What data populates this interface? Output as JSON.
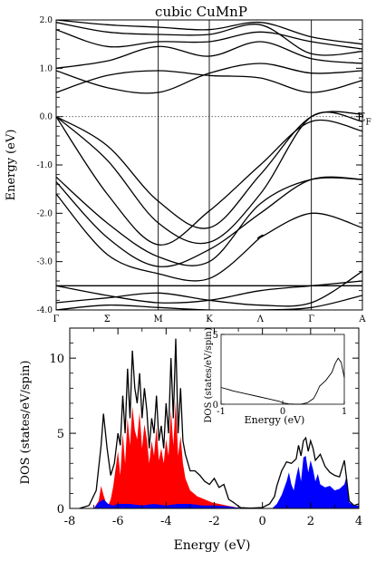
{
  "chart_data": [
    {
      "type": "line",
      "title": "cubic CuMnP",
      "ylabel": "Energy (eV)",
      "ylim": [
        -4.0,
        2.0
      ],
      "yticks": [
        -4.0,
        -3.0,
        -2.0,
        -1.0,
        0.0,
        1.0,
        2.0
      ],
      "ytick_labels": [
        "-4.0",
        "-3.0",
        "-2.0",
        "-1.0",
        "0.0",
        "1.0",
        "2.0"
      ],
      "kpoints": [
        "Γ",
        "Σ",
        "M",
        "K",
        "Λ",
        "Γ",
        "A"
      ],
      "kpoint_pos": [
        0,
        0.5,
        1,
        1.5,
        2,
        2.5,
        3
      ],
      "symmetry_lines_at": [
        1,
        1.5,
        2.5
      ],
      "fermi_label": "E",
      "fermi_sub": "F",
      "fermi_level": 0.0,
      "bands": [
        [
          [
            0,
            0.0
          ],
          [
            0.5,
            -0.6
          ],
          [
            1,
            -1.75
          ],
          [
            1.5,
            -2.3
          ],
          [
            2,
            -1.2
          ],
          [
            2.5,
            0.0
          ],
          [
            3,
            0.05
          ]
        ],
        [
          [
            0,
            0.0
          ],
          [
            0.5,
            -0.9
          ],
          [
            1,
            -2.2
          ],
          [
            1.5,
            -2.6
          ],
          [
            2,
            -1.6
          ],
          [
            2.5,
            0.0
          ],
          [
            3,
            -0.1
          ]
        ],
        [
          [
            0,
            0.0
          ],
          [
            0.5,
            -1.6
          ],
          [
            1,
            -2.65
          ],
          [
            1.5,
            -1.95
          ],
          [
            2,
            -1.0
          ],
          [
            2.5,
            -0.1
          ],
          [
            3,
            -0.3
          ]
        ],
        [
          [
            0,
            -1.25
          ],
          [
            0.5,
            -2.2
          ],
          [
            1,
            -2.9
          ],
          [
            1.5,
            -3.0
          ],
          [
            2,
            -1.8
          ],
          [
            2.5,
            -1.3
          ],
          [
            3,
            -1.3
          ]
        ],
        [
          [
            0,
            -1.35
          ],
          [
            0.5,
            -2.5
          ],
          [
            1,
            -3.1
          ],
          [
            1.5,
            -2.75
          ],
          [
            2,
            -2.0
          ],
          [
            2.5,
            -1.3
          ],
          [
            3,
            -1.3
          ]
        ],
        [
          [
            0,
            -1.6
          ],
          [
            0.5,
            -2.85
          ],
          [
            1,
            -3.25
          ],
          [
            1.5,
            -3.35
          ],
          [
            2,
            -2.5
          ],
          [
            2,
            -2.5
          ],
          [
            2.5,
            -2.0
          ],
          [
            3,
            -2.3
          ]
        ],
        [
          [
            0,
            -3.5
          ],
          [
            0.5,
            -3.5
          ],
          [
            1,
            -3.5
          ],
          [
            1.5,
            -3.5
          ],
          [
            2,
            -3.5
          ],
          [
            2.5,
            -3.5
          ],
          [
            3,
            -3.5
          ]
        ],
        [
          [
            0,
            -3.5
          ],
          [
            0.5,
            -3.7
          ],
          [
            1,
            -3.85
          ],
          [
            1.5,
            -3.8
          ],
          [
            2,
            -3.6
          ],
          [
            2.5,
            -3.5
          ],
          [
            3,
            -3.4
          ]
        ],
        [
          [
            0,
            -3.85
          ],
          [
            0.5,
            -3.75
          ],
          [
            1,
            -3.65
          ],
          [
            1.5,
            -3.8
          ],
          [
            2,
            -3.9
          ],
          [
            2.5,
            -3.85
          ],
          [
            3,
            -3.2
          ]
        ],
        [
          [
            0,
            -4.0
          ],
          [
            0.5,
            -3.9
          ],
          [
            1,
            -3.95
          ],
          [
            1.5,
            -4.0
          ],
          [
            2,
            -4.0
          ],
          [
            2.5,
            -3.95
          ],
          [
            3,
            -3.7
          ]
        ],
        [
          [
            0,
            0.5
          ],
          [
            0.5,
            0.85
          ],
          [
            1,
            0.95
          ],
          [
            1.5,
            0.85
          ],
          [
            2,
            0.8
          ],
          [
            2.5,
            0.5
          ],
          [
            3,
            0.75
          ]
        ],
        [
          [
            0,
            0.95
          ],
          [
            0.5,
            0.6
          ],
          [
            1,
            0.5
          ],
          [
            1.5,
            0.9
          ],
          [
            2,
            1.1
          ],
          [
            2.5,
            0.9
          ],
          [
            3,
            0.95
          ]
        ],
        [
          [
            0,
            1.0
          ],
          [
            0.5,
            1.15
          ],
          [
            1,
            1.45
          ],
          [
            1.5,
            1.25
          ],
          [
            2,
            1.55
          ],
          [
            2.5,
            1.2
          ],
          [
            3,
            1.1
          ]
        ],
        [
          [
            0,
            1.8
          ],
          [
            0.5,
            1.45
          ],
          [
            1,
            1.55
          ],
          [
            1.5,
            1.55
          ],
          [
            2,
            1.75
          ],
          [
            2.5,
            1.55
          ],
          [
            3,
            1.4
          ]
        ],
        [
          [
            0,
            1.95
          ],
          [
            0.5,
            1.75
          ],
          [
            1,
            1.7
          ],
          [
            1.5,
            1.7
          ],
          [
            2,
            1.9
          ],
          [
            2.5,
            1.3
          ],
          [
            3,
            1.35
          ]
        ],
        [
          [
            0,
            2.0
          ],
          [
            0.5,
            1.9
          ],
          [
            1,
            1.85
          ],
          [
            1.5,
            1.8
          ],
          [
            2,
            1.95
          ],
          [
            2.5,
            1.65
          ],
          [
            3,
            1.5
          ]
        ]
      ]
    },
    {
      "type": "area",
      "ylabel": "DOS (states/eV/spin)",
      "xlabel": "Energy (eV)",
      "xlim": [
        -8,
        4
      ],
      "ylim": [
        0,
        12
      ],
      "xticks": [
        -8,
        -6,
        -4,
        -2,
        0,
        2,
        4
      ],
      "xtick_labels": [
        "-8",
        "-6",
        "-4",
        "-2",
        "0",
        "2",
        "4"
      ],
      "yticks": [
        0,
        5,
        10
      ],
      "ytick_labels": [
        "0",
        "5",
        "10"
      ],
      "series": [
        {
          "color": "#000000",
          "x": [
            -7.6,
            -7.2,
            -6.9,
            -6.7,
            -6.6,
            -6.45,
            -6.3,
            -6.15,
            -6.0,
            -5.9,
            -5.8,
            -5.7,
            -5.6,
            -5.5,
            -5.4,
            -5.3,
            -5.2,
            -5.1,
            -5.0,
            -4.9,
            -4.8,
            -4.7,
            -4.6,
            -4.5,
            -4.4,
            -4.3,
            -4.2,
            -4.1,
            -4.0,
            -3.9,
            -3.8,
            -3.7,
            -3.6,
            -3.5,
            -3.4,
            -3.3,
            -3.2,
            -3.0,
            -2.8,
            -2.6,
            -2.4,
            -2.2,
            -2.0,
            -1.8,
            -1.6,
            -1.4,
            -1.2,
            -1.0,
            -0.9,
            -0.5,
            -0.2,
            0.0,
            0.3,
            0.5,
            0.6,
            0.8,
            1.0,
            1.2,
            1.4,
            1.5,
            1.6,
            1.7,
            1.8,
            1.9,
            2.0,
            2.1,
            2.2,
            2.4,
            2.6,
            2.8,
            3.0,
            3.2,
            3.4,
            3.6,
            3.8,
            4.0
          ],
          "y": [
            0.0,
            0.2,
            1.2,
            4.2,
            6.3,
            4.0,
            2.2,
            3.0,
            5.0,
            4.2,
            7.5,
            5.0,
            9.3,
            6.0,
            10.5,
            8.0,
            7.0,
            9.0,
            6.0,
            8.0,
            6.5,
            4.0,
            6.0,
            5.0,
            7.5,
            4.5,
            5.5,
            4.0,
            7.0,
            5.0,
            10.0,
            6.0,
            11.3,
            5.0,
            8.0,
            4.5,
            3.6,
            2.5,
            2.5,
            2.2,
            1.8,
            1.6,
            2.0,
            1.4,
            1.6,
            0.6,
            0.4,
            0.15,
            0.05,
            0.02,
            0.04,
            0.06,
            0.3,
            0.8,
            1.5,
            2.5,
            3.1,
            3.0,
            3.3,
            4.2,
            3.5,
            4.5,
            4.7,
            3.8,
            4.5,
            4.0,
            3.2,
            3.6,
            2.8,
            2.4,
            2.2,
            2.1,
            3.2,
            0.5,
            0.2,
            0.3
          ]
        },
        {
          "color": "#ff0000",
          "x": [
            -7.0,
            -6.8,
            -6.7,
            -6.6,
            -6.5,
            -6.4,
            -6.3,
            -6.2,
            -6.1,
            -6.0,
            -5.9,
            -5.8,
            -5.7,
            -5.6,
            -5.5,
            -5.4,
            -5.3,
            -5.2,
            -5.1,
            -5.0,
            -4.9,
            -4.8,
            -4.7,
            -4.6,
            -4.5,
            -4.4,
            -4.3,
            -4.2,
            -4.1,
            -4.0,
            -3.9,
            -3.8,
            -3.7,
            -3.6,
            -3.5,
            -3.4,
            -3.3,
            -3.2,
            -3.0,
            -2.7,
            -2.4,
            -2.1,
            -1.8,
            -1.5,
            -1.2,
            -0.9
          ],
          "y": [
            0.0,
            0.5,
            1.5,
            0.9,
            0.4,
            0.2,
            0.6,
            1.4,
            2.6,
            3.8,
            2.2,
            5.0,
            3.0,
            6.0,
            4.2,
            6.8,
            5.2,
            4.6,
            6.4,
            4.0,
            5.6,
            4.6,
            3.0,
            4.5,
            3.5,
            5.4,
            3.2,
            4.0,
            3.0,
            4.6,
            3.5,
            6.5,
            4.2,
            7.2,
            3.5,
            4.8,
            3.0,
            2.0,
            1.2,
            0.8,
            0.6,
            0.4,
            0.3,
            0.2,
            0.1,
            0.0
          ]
        },
        {
          "color": "#0000ff",
          "x": [
            -7.0,
            -6.8,
            -6.6,
            -6.4,
            -6.2,
            -6.0,
            -5.5,
            -5.0,
            -4.5,
            -4.0,
            -3.5,
            -3.0,
            -2.5,
            -2.0,
            -1.5,
            -1.0,
            0.4,
            0.6,
            0.8,
            1.0,
            1.1,
            1.2,
            1.3,
            1.4,
            1.5,
            1.6,
            1.7,
            1.8,
            1.9,
            2.0,
            2.1,
            2.2,
            2.3,
            2.4,
            2.6,
            2.8,
            3.0,
            3.2,
            3.4,
            3.5,
            3.6,
            3.8,
            4.0
          ],
          "y": [
            0.0,
            0.4,
            0.6,
            0.3,
            0.2,
            0.3,
            0.3,
            0.2,
            0.3,
            0.2,
            0.3,
            0.3,
            0.2,
            0.2,
            0.15,
            0.05,
            0.0,
            0.3,
            0.9,
            1.8,
            2.4,
            1.6,
            1.2,
            2.1,
            2.8,
            1.8,
            3.4,
            3.5,
            2.4,
            3.2,
            2.6,
            1.8,
            2.3,
            1.6,
            1.4,
            1.5,
            1.2,
            1.3,
            1.6,
            2.2,
            0.4,
            0.2,
            0.2
          ]
        }
      ]
    },
    {
      "type": "line",
      "ylabel": "DOS (states/eV/spin)",
      "xlabel": "Energy (eV)",
      "xlim": [
        -1,
        1
      ],
      "ylim": [
        0,
        5
      ],
      "xticks": [
        -1,
        0,
        1
      ],
      "xtick_labels": [
        "-1",
        "0",
        "1"
      ],
      "yticks": [
        0,
        5
      ],
      "ytick_labels": [
        "0",
        "5"
      ],
      "series": [
        {
          "color": "#000000",
          "x": [
            -1.0,
            -0.8,
            -0.6,
            -0.4,
            -0.2,
            -0.05,
            0.0,
            0.1,
            0.2,
            0.3,
            0.4,
            0.5,
            0.55,
            0.6,
            0.7,
            0.8,
            0.85,
            0.9,
            0.95,
            1.0
          ],
          "y": [
            1.2,
            0.95,
            0.75,
            0.55,
            0.35,
            0.2,
            0.1,
            0.02,
            0.0,
            0.0,
            0.1,
            0.4,
            0.8,
            1.3,
            1.7,
            2.3,
            2.9,
            3.3,
            3.0,
            1.9
          ]
        }
      ]
    }
  ]
}
